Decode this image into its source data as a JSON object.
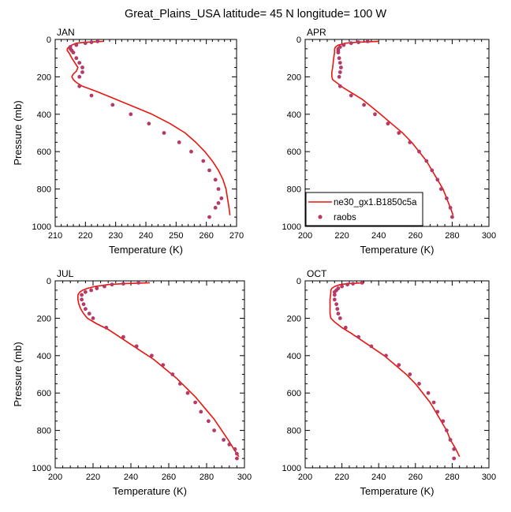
{
  "title": "Great_Plains_USA  latitude= 45 N longitude= 100 W",
  "colors": {
    "model": "#e8160e",
    "obs": "#b53a66",
    "frame": "#000000"
  },
  "legend": {
    "panel_index": 1,
    "placement": "bottom-left",
    "entries": [
      {
        "label": "ne30_gx1.B1850c5a",
        "kind": "line"
      },
      {
        "label": "raobs",
        "kind": "marker"
      }
    ]
  },
  "chart_data": [
    {
      "type": "line",
      "panel": "JAN",
      "xlabel": "Temperature (K)",
      "ylabel": "Pressure (mb)",
      "xlim": [
        210,
        270
      ],
      "ylim": [
        1000,
        0
      ],
      "xticks": [
        210,
        220,
        230,
        240,
        250,
        260,
        270
      ],
      "yticks": [
        0,
        200,
        400,
        600,
        800,
        1000
      ],
      "series": [
        {
          "name": "ne30_gx1.B1850c5a",
          "style": "line",
          "points": [
            [
              226,
              10
            ],
            [
              220,
              15
            ],
            [
              217,
              20
            ],
            [
              215.5,
              30
            ],
            [
              214.5,
              40
            ],
            [
              214,
              50
            ],
            [
              214,
              60
            ],
            [
              214.5,
              70
            ],
            [
              215.5,
              100
            ],
            [
              216.5,
              125
            ],
            [
              217.5,
              150
            ],
            [
              217,
              170
            ],
            [
              216,
              185
            ],
            [
              215.5,
              200
            ],
            [
              216,
              215
            ],
            [
              217,
              230
            ],
            [
              219,
              250
            ],
            [
              224,
              280
            ],
            [
              230,
              320
            ],
            [
              236,
              360
            ],
            [
              242,
              400
            ],
            [
              248,
              450
            ],
            [
              253,
              500
            ],
            [
              256.5,
              550
            ],
            [
              259.5,
              600
            ],
            [
              262,
              650
            ],
            [
              264,
              700
            ],
            [
              265.5,
              750
            ],
            [
              266.5,
              800
            ],
            [
              267,
              850
            ],
            [
              267.5,
              900
            ],
            [
              267.8,
              940
            ]
          ]
        },
        {
          "name": "raobs",
          "style": "marker",
          "points": [
            [
              224,
              10
            ],
            [
              222,
              15
            ],
            [
              220,
              20
            ],
            [
              217,
              30
            ],
            [
              215,
              40
            ],
            [
              215,
              50
            ],
            [
              215.5,
              60
            ],
            [
              216,
              70
            ],
            [
              217,
              100
            ],
            [
              218,
              125
            ],
            [
              219,
              150
            ],
            [
              219,
              175
            ],
            [
              218,
              200
            ],
            [
              218,
              250
            ],
            [
              222,
              300
            ],
            [
              229,
              350
            ],
            [
              235,
              400
            ],
            [
              241,
              450
            ],
            [
              246,
              500
            ],
            [
              251,
              550
            ],
            [
              255,
              600
            ],
            [
              259,
              650
            ],
            [
              261,
              700
            ],
            [
              263,
              750
            ],
            [
              264,
              800
            ],
            [
              265,
              850
            ],
            [
              264,
              875
            ],
            [
              263,
              900
            ],
            [
              261,
              950
            ]
          ]
        }
      ]
    },
    {
      "type": "line",
      "panel": "APR",
      "xlabel": "Temperature (K)",
      "ylabel": "",
      "xlim": [
        200,
        300
      ],
      "ylim": [
        1000,
        0
      ],
      "xticks": [
        200,
        220,
        240,
        260,
        280,
        300
      ],
      "yticks": [
        0,
        200,
        400,
        600,
        800,
        1000
      ],
      "series": [
        {
          "name": "ne30_gx1.B1850c5a",
          "style": "line",
          "points": [
            [
              240,
              10
            ],
            [
              228,
              15
            ],
            [
              222,
              20
            ],
            [
              218,
              30
            ],
            [
              216.5,
              40
            ],
            [
              216,
              50
            ],
            [
              216,
              60
            ],
            [
              216,
              70
            ],
            [
              215.5,
              100
            ],
            [
              215,
              150
            ],
            [
              214.5,
              175
            ],
            [
              214.5,
              200
            ],
            [
              215,
              215
            ],
            [
              217,
              230
            ],
            [
              221,
              260
            ],
            [
              226,
              290
            ],
            [
              231,
              320
            ],
            [
              236,
              360
            ],
            [
              241,
              400
            ],
            [
              247,
              450
            ],
            [
              253,
              500
            ],
            [
              258,
              550
            ],
            [
              262,
              600
            ],
            [
              266,
              650
            ],
            [
              269,
              700
            ],
            [
              272,
              750
            ],
            [
              275,
              800
            ],
            [
              277,
              850
            ],
            [
              279,
              900
            ],
            [
              280.5,
              940
            ]
          ]
        },
        {
          "name": "raobs",
          "style": "marker",
          "points": [
            [
              234,
              10
            ],
            [
              229,
              15
            ],
            [
              225,
              20
            ],
            [
              221,
              30
            ],
            [
              219,
              40
            ],
            [
              218,
              50
            ],
            [
              218,
              60
            ],
            [
              218,
              70
            ],
            [
              218.5,
              100
            ],
            [
              219,
              125
            ],
            [
              219.5,
              150
            ],
            [
              219,
              175
            ],
            [
              218.5,
              200
            ],
            [
              219,
              250
            ],
            [
              225,
              300
            ],
            [
              232,
              350
            ],
            [
              238,
              400
            ],
            [
              245,
              450
            ],
            [
              251,
              500
            ],
            [
              257,
              550
            ],
            [
              262,
              600
            ],
            [
              266,
              650
            ],
            [
              269,
              700
            ],
            [
              272,
              750
            ],
            [
              274,
              800
            ],
            [
              277,
              850
            ],
            [
              279,
              900
            ],
            [
              280,
              950
            ]
          ]
        }
      ]
    },
    {
      "type": "line",
      "panel": "JUL",
      "xlabel": "Temperature (K)",
      "ylabel": "Pressure (mb)",
      "xlim": [
        200,
        300
      ],
      "ylim": [
        1000,
        0
      ],
      "xticks": [
        200,
        220,
        240,
        260,
        280,
        300
      ],
      "yticks": [
        0,
        200,
        400,
        600,
        800,
        1000
      ],
      "series": [
        {
          "name": "ne30_gx1.B1850c5a",
          "style": "line",
          "points": [
            [
              250,
              10
            ],
            [
              236,
              15
            ],
            [
              228,
              20
            ],
            [
              221,
              30
            ],
            [
              217,
              40
            ],
            [
              214.5,
              50
            ],
            [
              213,
              60
            ],
            [
              212,
              75
            ],
            [
              212,
              100
            ],
            [
              212.5,
              125
            ],
            [
              213.5,
              150
            ],
            [
              215,
              175
            ],
            [
              217,
              200
            ],
            [
              222,
              230
            ],
            [
              228,
              260
            ],
            [
              234,
              300
            ],
            [
              240,
              340
            ],
            [
              246,
              380
            ],
            [
              252,
              420
            ],
            [
              258,
              470
            ],
            [
              264,
              520
            ],
            [
              269,
              570
            ],
            [
              274,
              620
            ],
            [
              279,
              680
            ],
            [
              284,
              740
            ],
            [
              288,
              800
            ],
            [
              292,
              860
            ],
            [
              295,
              910
            ],
            [
              297,
              940
            ]
          ]
        },
        {
          "name": "raobs",
          "style": "marker",
          "points": [
            [
              244,
              10
            ],
            [
              236,
              15
            ],
            [
              230,
              20
            ],
            [
              226,
              30
            ],
            [
              222,
              40
            ],
            [
              219,
              50
            ],
            [
              216,
              60
            ],
            [
              214,
              75
            ],
            [
              214,
              100
            ],
            [
              215,
              125
            ],
            [
              216,
              150
            ],
            [
              218,
              175
            ],
            [
              220,
              200
            ],
            [
              227,
              250
            ],
            [
              236,
              300
            ],
            [
              243,
              350
            ],
            [
              251,
              400
            ],
            [
              257,
              450
            ],
            [
              262,
              500
            ],
            [
              266,
              550
            ],
            [
              270,
              600
            ],
            [
              274,
              650
            ],
            [
              277,
              700
            ],
            [
              281,
              750
            ],
            [
              284,
              800
            ],
            [
              289,
              850
            ],
            [
              292,
              875
            ],
            [
              295,
              900
            ],
            [
              296,
              925
            ],
            [
              296,
              950
            ]
          ]
        }
      ]
    },
    {
      "type": "line",
      "panel": "OCT",
      "xlabel": "Temperature (K)",
      "ylabel": "",
      "xlim": [
        200,
        300
      ],
      "ylim": [
        1000,
        0
      ],
      "xticks": [
        200,
        220,
        240,
        260,
        280,
        300
      ],
      "yticks": [
        0,
        200,
        400,
        600,
        800,
        1000
      ],
      "series": [
        {
          "name": "ne30_gx1.B1850c5a",
          "style": "line",
          "points": [
            [
              232,
              10
            ],
            [
              223,
              15
            ],
            [
              219,
              20
            ],
            [
              216,
              30
            ],
            [
              214.5,
              40
            ],
            [
              214,
              50
            ],
            [
              214,
              60
            ],
            [
              213.5,
              100
            ],
            [
              213.5,
              125
            ],
            [
              213.5,
              150
            ],
            [
              213.5,
              175
            ],
            [
              214,
              200
            ],
            [
              216,
              220
            ],
            [
              220,
              250
            ],
            [
              225,
              280
            ],
            [
              231,
              320
            ],
            [
              237,
              360
            ],
            [
              243,
              400
            ],
            [
              249,
              450
            ],
            [
              255,
              500
            ],
            [
              260,
              550
            ],
            [
              264,
              600
            ],
            [
              268,
              650
            ],
            [
              271,
              700
            ],
            [
              274,
              750
            ],
            [
              277,
              800
            ],
            [
              279,
              850
            ],
            [
              282,
              900
            ],
            [
              284,
              940
            ]
          ]
        },
        {
          "name": "raobs",
          "style": "marker",
          "points": [
            [
              231,
              10
            ],
            [
              226,
              15
            ],
            [
              223,
              20
            ],
            [
              220,
              30
            ],
            [
              218,
              40
            ],
            [
              217,
              50
            ],
            [
              216,
              60
            ],
            [
              216,
              75
            ],
            [
              216,
              100
            ],
            [
              217,
              125
            ],
            [
              217.5,
              150
            ],
            [
              218,
              175
            ],
            [
              219,
              200
            ],
            [
              222,
              250
            ],
            [
              229,
              300
            ],
            [
              236,
              350
            ],
            [
              244,
              400
            ],
            [
              251,
              450
            ],
            [
              257,
              500
            ],
            [
              262,
              550
            ],
            [
              267,
              600
            ],
            [
              270,
              650
            ],
            [
              272,
              700
            ],
            [
              275,
              750
            ],
            [
              277,
              800
            ],
            [
              279,
              850
            ],
            [
              281,
              900
            ],
            [
              281,
              950
            ]
          ]
        }
      ]
    }
  ]
}
